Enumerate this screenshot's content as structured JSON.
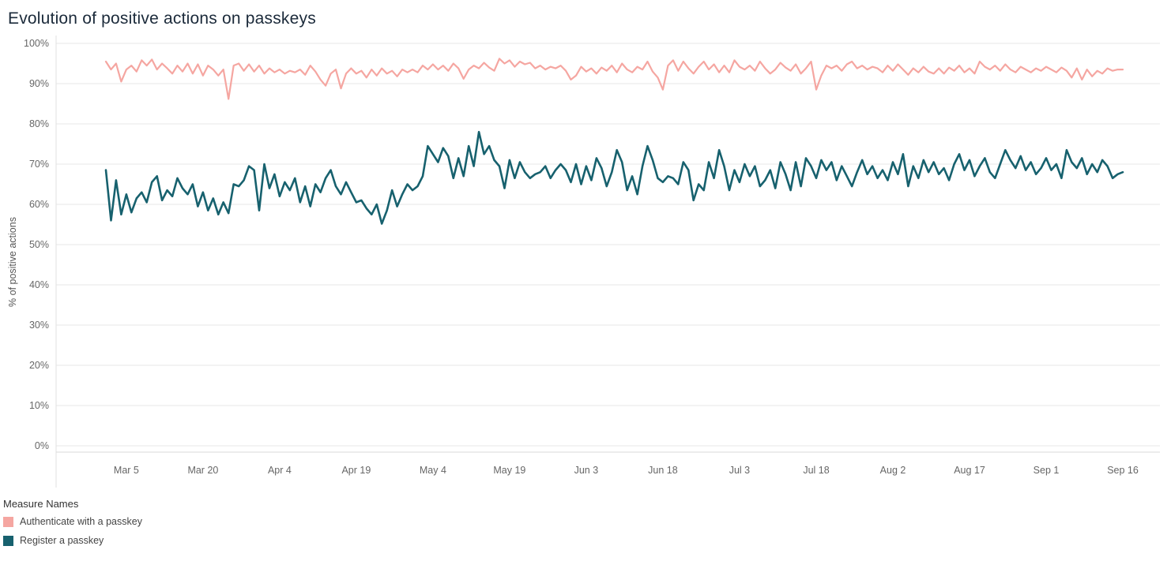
{
  "title": "Evolution of positive actions on passkeys",
  "y_axis_title": "% of positive actions",
  "legend": {
    "title": "Measure Names",
    "items": [
      {
        "label": "Authenticate with a passkey",
        "color": "#F5A6A1"
      },
      {
        "label": "Register a passkey",
        "color": "#17616E"
      }
    ]
  },
  "colors": {
    "grid": "#e7e7e7",
    "axis_line": "#d9d9d9",
    "tick_text": "#666666",
    "title_text": "#1b2a3a"
  },
  "chart_data": {
    "type": "line",
    "title": "Evolution of positive actions on passkeys",
    "xlabel": "",
    "ylabel": "% of positive actions",
    "ylim": [
      0,
      100
    ],
    "grid": true,
    "legend_position": "bottom-left",
    "y_ticks": [
      "0%",
      "10%",
      "20%",
      "30%",
      "40%",
      "50%",
      "60%",
      "70%",
      "80%",
      "90%",
      "100%"
    ],
    "x_start_date": "Mar 1",
    "x_end_date": "Sep 16",
    "x_tick_labels": [
      "Mar 5",
      "Mar 20",
      "Apr 4",
      "Apr 19",
      "May 4",
      "May 19",
      "Jun 3",
      "Jun 18",
      "Jul 3",
      "Jul 18",
      "Aug 2",
      "Aug 17",
      "Sep 1",
      "Sep 16"
    ],
    "x_tick_indices": [
      4,
      19,
      34,
      49,
      64,
      79,
      94,
      109,
      124,
      139,
      154,
      169,
      184,
      199
    ],
    "series": [
      {
        "name": "Authenticate with a passkey",
        "color": "#F5A6A1",
        "stroke_width": 2.2,
        "values": [
          95.5,
          93.5,
          95,
          90.5,
          93.5,
          94.5,
          93,
          95.8,
          94.5,
          96,
          93.5,
          95,
          93.8,
          92.5,
          94.5,
          93,
          95,
          92.5,
          94.8,
          92,
          94.5,
          93.5,
          92,
          93.5,
          86.2,
          94.5,
          95,
          93.2,
          94.8,
          93,
          94.5,
          92.5,
          93.8,
          92.8,
          93.5,
          92.5,
          93.2,
          92.8,
          93.5,
          92.2,
          94.5,
          93,
          91,
          89.5,
          92.5,
          93.5,
          88.8,
          92.5,
          93.8,
          92.5,
          93.2,
          91.5,
          93.5,
          92,
          93.8,
          92.5,
          93.2,
          91.8,
          93.5,
          92.8,
          93.5,
          92.8,
          94.5,
          93.5,
          94.8,
          93.5,
          94.5,
          93.2,
          95,
          93.8,
          91.2,
          93.5,
          94.5,
          93.8,
          95.2,
          94,
          93.2,
          96.2,
          95,
          95.8,
          94.2,
          95.5,
          94.8,
          95.2,
          93.8,
          94.5,
          93.5,
          94.2,
          93.8,
          94.5,
          93.2,
          91,
          92,
          94.2,
          93,
          93.8,
          92.5,
          94,
          93.2,
          94.5,
          92.8,
          95,
          93.5,
          92.8,
          94.2,
          93.5,
          95.5,
          93,
          91.5,
          88.5,
          94.5,
          95.8,
          93.2,
          95.5,
          93.8,
          92.5,
          94.2,
          95.5,
          93.5,
          94.8,
          92.8,
          94.5,
          92.8,
          95.8,
          94.2,
          93.5,
          94.5,
          93.2,
          95.5,
          93.8,
          92.5,
          93.5,
          95.2,
          94,
          93.2,
          94.8,
          92.5,
          93.8,
          95.5,
          88.5,
          92,
          94.5,
          93.8,
          94.5,
          93.2,
          94.8,
          95.5,
          93.8,
          94.5,
          93.5,
          94.2,
          93.8,
          92.8,
          94.5,
          93.2,
          94.8,
          93.5,
          92.2,
          93.8,
          92.8,
          94.2,
          93,
          92.5,
          93.8,
          92.5,
          94,
          93.2,
          94.5,
          92.8,
          93.8,
          92.5,
          95.5,
          94.2,
          93.5,
          94.5,
          93.2,
          94.8,
          93.5,
          92.8,
          94.2,
          93.5,
          92.8,
          93.8,
          93.2,
          94.2,
          93.5,
          92.8,
          94,
          93.2,
          91.5,
          93.8,
          91,
          93.5,
          91.8,
          93.2,
          92.5,
          93.8,
          93.2,
          93.5,
          93.5
        ]
      },
      {
        "name": "Register a passkey",
        "color": "#17616E",
        "stroke_width": 2.6,
        "values": [
          68.5,
          56,
          66,
          57.5,
          62.5,
          58,
          61.5,
          63,
          60.5,
          65.5,
          67,
          61,
          63.5,
          62,
          66.5,
          64,
          62.5,
          65,
          59.5,
          63,
          58.5,
          61.5,
          57.5,
          60.5,
          57.8,
          65,
          64.5,
          66,
          69.5,
          68.5,
          58.5,
          70,
          64,
          67.5,
          62,
          65.5,
          63.5,
          66.5,
          60.5,
          64.5,
          59.5,
          65,
          63,
          66.5,
          68.5,
          64.5,
          62.5,
          65.5,
          63,
          60.5,
          61,
          59,
          57.5,
          60,
          55.2,
          58.5,
          63.5,
          59.5,
          62.5,
          65,
          63.5,
          64.5,
          67,
          74.5,
          72.5,
          70.5,
          74,
          72,
          66.5,
          71.5,
          67,
          74.5,
          69.5,
          78,
          72.5,
          74.5,
          71,
          69.5,
          64,
          71,
          66.5,
          70.5,
          68,
          66.5,
          67.5,
          68,
          69.5,
          66.5,
          68.5,
          70,
          68.5,
          65.5,
          70,
          65,
          69.5,
          66,
          71.5,
          69,
          64.5,
          68,
          73.5,
          70.5,
          63.5,
          67,
          62.5,
          69.5,
          74.5,
          71,
          66.5,
          65.5,
          67,
          66.5,
          65,
          70.5,
          68.5,
          61,
          65,
          63.5,
          70.5,
          66.5,
          73.5,
          69.5,
          63.5,
          68.5,
          65.5,
          70,
          67,
          69.5,
          64.5,
          66,
          68.5,
          64,
          70.5,
          67.5,
          63.5,
          70.5,
          64.5,
          71.5,
          69.5,
          66.5,
          71,
          68.5,
          70.5,
          66,
          69.5,
          67,
          64.5,
          68,
          71,
          67.5,
          69.5,
          66.5,
          68.5,
          66,
          70.5,
          67.5,
          72.5,
          64.5,
          69.5,
          66.5,
          71,
          68,
          70.5,
          67.5,
          69,
          66,
          70,
          72.5,
          68.5,
          71,
          67,
          69.5,
          71.5,
          68,
          66.5,
          70,
          73.5,
          71,
          69,
          72,
          68.5,
          70.5,
          67.5,
          69,
          71.5,
          68.5,
          70,
          66.5,
          73.5,
          70.5,
          69,
          71.5,
          67.5,
          70,
          68,
          71,
          69.5,
          66.5,
          67.5,
          68
        ]
      }
    ]
  }
}
